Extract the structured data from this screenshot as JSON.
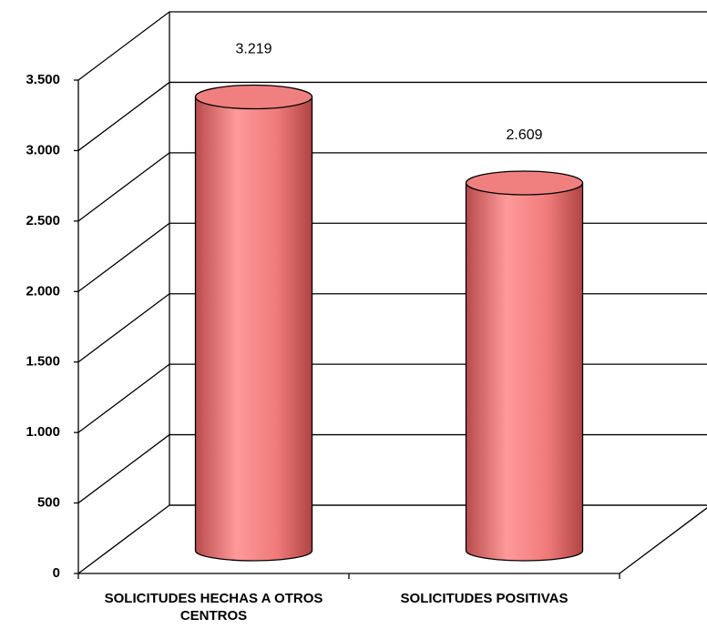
{
  "chart_data": {
    "type": "bar",
    "categories": [
      "SOLICITUDES HECHAS A OTROS CENTROS",
      "SOLICITUDES POSITIVAS"
    ],
    "values": [
      3219,
      2609
    ],
    "value_labels": [
      "3.219",
      "2.609"
    ],
    "color": "#f08080",
    "ylim": [
      0,
      3500
    ],
    "yticks": [
      0,
      500,
      {
        "value": 1000,
        "label": "1.000"
      },
      {
        "value": 1500,
        "label": "1.500"
      },
      {
        "value": 2000,
        "label": "2.000"
      },
      {
        "value": 2500,
        "label": "2.500"
      },
      {
        "value": 3000,
        "label": "3.000"
      },
      {
        "value": 3500,
        "label": "3.500"
      }
    ],
    "grid": true
  }
}
